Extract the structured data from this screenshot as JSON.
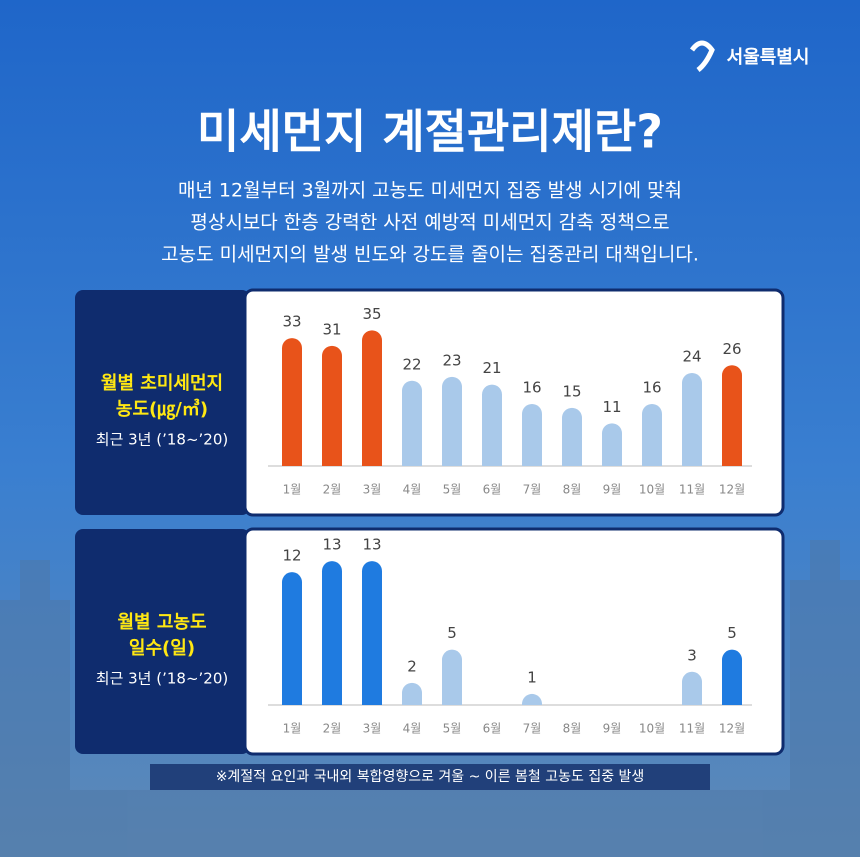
{
  "header": {
    "logo": "서울특별시",
    "title": "미세먼지 계절관리제란?",
    "description": [
      "매년 12월부터 3월까지 고농도 미세먼지 집중 발생 시기에 맞춰",
      "평상시보다 한층 강력한 사전 예방적 미세먼지 감축 정책으로",
      "고농도 미세먼지의 발생 빈도와 강도를 줄이는 집중관리 대책입니다."
    ]
  },
  "chart_data": [
    {
      "type": "bar",
      "title": [
        "월별 초미세먼지",
        "농도(㎍/㎥)"
      ],
      "subtitle": "최근 3년 (’18~’20)",
      "categories": [
        "1월",
        "2월",
        "3월",
        "4월",
        "5월",
        "6월",
        "7월",
        "8월",
        "9월",
        "10월",
        "11월",
        "12월"
      ],
      "values": [
        33,
        31,
        35,
        22,
        23,
        21,
        16,
        15,
        11,
        16,
        24,
        26
      ],
      "colors": [
        "#e8531a",
        "#e8531a",
        "#e8531a",
        "#a9c9ea",
        "#a9c9ea",
        "#a9c9ea",
        "#a9c9ea",
        "#a9c9ea",
        "#a9c9ea",
        "#a9c9ea",
        "#a9c9ea",
        "#e8531a"
      ],
      "ylim": [
        0,
        40
      ]
    },
    {
      "type": "bar",
      "title": [
        "월별 고농도",
        "일수(일)"
      ],
      "subtitle": "최근 3년 (’18~’20)",
      "categories": [
        "1월",
        "2월",
        "3월",
        "4월",
        "5월",
        "6월",
        "7월",
        "8월",
        "9월",
        "10월",
        "11월",
        "12월"
      ],
      "values": [
        12,
        13,
        13,
        2,
        5,
        null,
        1,
        null,
        null,
        null,
        3,
        5
      ],
      "colors": [
        "#1f7be0",
        "#1f7be0",
        "#1f7be0",
        "#a9c9ea",
        "#a9c9ea",
        "#a9c9ea",
        "#a9c9ea",
        "#a9c9ea",
        "#a9c9ea",
        "#a9c9ea",
        "#a9c9ea",
        "#1f7be0"
      ],
      "ylim": [
        0,
        14
      ]
    }
  ],
  "footnote": "※계절적 요인과 국내외 복합영향으로 겨울 ~ 이른 봄철 고농도 집중 발생"
}
